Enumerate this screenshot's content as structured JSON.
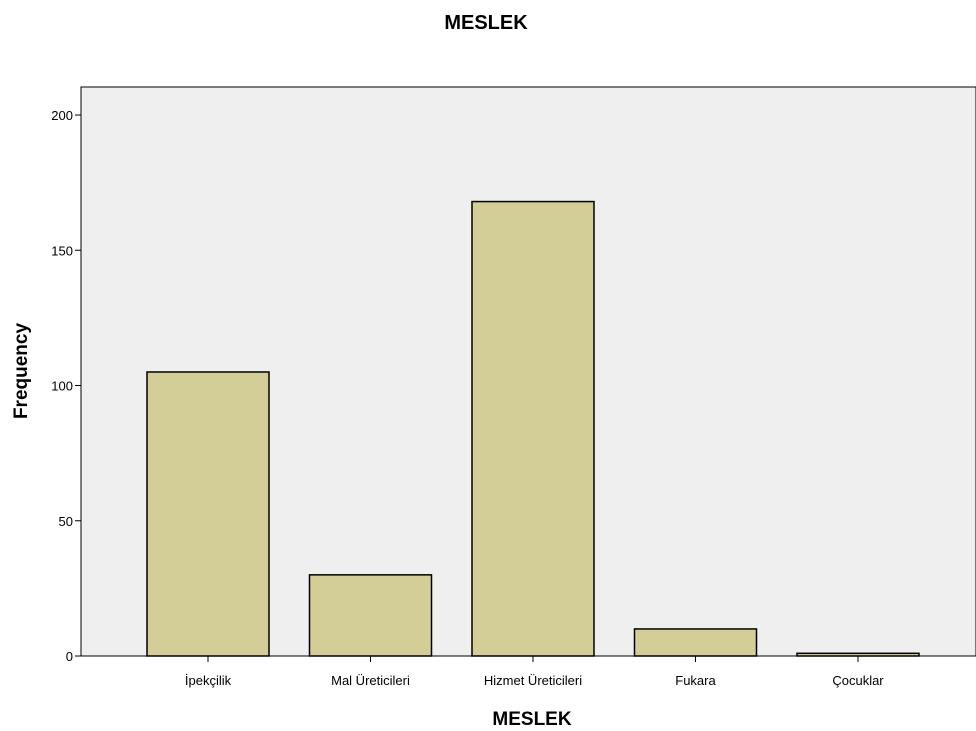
{
  "chart_data": {
    "type": "bar",
    "title": "MESLEK",
    "xlabel": "MESLEK",
    "ylabel": "Frequency",
    "categories": [
      "İpekçilik",
      "Mal Üreticileri",
      "Hizmet Üreticileri",
      "Fukara",
      "Çocuklar"
    ],
    "values": [
      105,
      30,
      168,
      10,
      1
    ],
    "ylim": [
      0,
      210
    ],
    "yticks": [
      0,
      50,
      100,
      150,
      200
    ],
    "grid": false,
    "legend": "none"
  },
  "colors": {
    "bar_fill": "#d3cd98",
    "bar_stroke": "#000000",
    "plot_background": "#efefef",
    "axis": "#000000"
  }
}
